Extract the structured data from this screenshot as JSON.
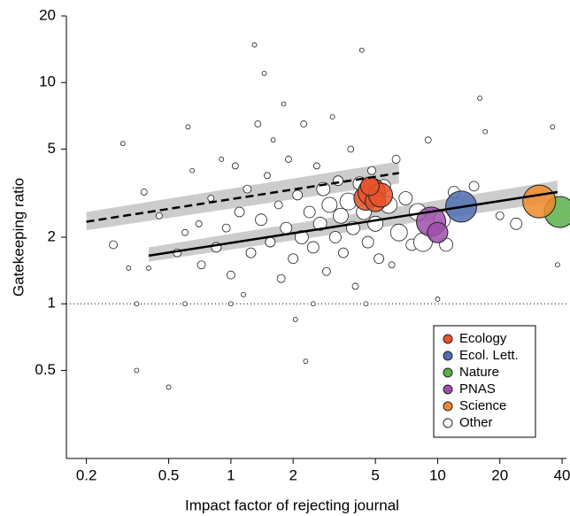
{
  "chart_data": {
    "type": "scatter",
    "x_label": "Impact factor of rejecting journal",
    "y_label": "Gatekeeping ratio",
    "log_x": true,
    "log_y": true,
    "xlim": [
      0.16,
      42
    ],
    "ylim": [
      0.2,
      20
    ],
    "xticks": [
      0.2,
      0.5,
      1,
      2,
      5,
      10,
      20,
      40
    ],
    "yticks": [
      0.5,
      1,
      2,
      5,
      10,
      20
    ],
    "legend_position": "lower right",
    "reference_y": 1,
    "fits": [
      {
        "style": "dashed",
        "x": [
          0.2,
          6.5
        ],
        "y": [
          2.35,
          3.9
        ],
        "band_low": [
          2.15,
          3.5
        ],
        "band_high": [
          2.6,
          4.4
        ]
      },
      {
        "style": "solid",
        "x": [
          0.4,
          38
        ],
        "y": [
          1.65,
          3.2
        ],
        "band_low": [
          1.55,
          2.9
        ],
        "band_high": [
          1.8,
          3.6
        ]
      }
    ],
    "series": [
      {
        "name": "Other",
        "color": "#ffffff",
        "x": [
          0.27,
          0.3,
          0.32,
          0.35,
          0.38,
          0.4,
          0.45,
          0.5,
          0.55,
          0.6,
          0.62,
          0.65,
          0.7,
          0.72,
          0.8,
          0.85,
          0.9,
          0.95,
          1.0,
          1.05,
          1.1,
          1.15,
          1.2,
          1.25,
          1.3,
          1.35,
          1.4,
          1.45,
          1.5,
          1.55,
          1.6,
          1.7,
          1.75,
          1.8,
          1.85,
          1.9,
          2.0,
          2.05,
          2.1,
          2.2,
          2.25,
          2.3,
          2.4,
          2.5,
          2.6,
          2.7,
          2.8,
          2.9,
          3.0,
          3.1,
          3.2,
          3.3,
          3.4,
          3.5,
          3.7,
          3.8,
          3.9,
          4.0,
          4.2,
          4.3,
          4.4,
          4.6,
          4.8,
          5.0,
          5.2,
          5.5,
          5.8,
          6.0,
          6.3,
          6.5,
          7.0,
          7.5,
          8.0,
          8.5,
          9.0,
          10.5,
          10.0,
          11,
          12,
          15,
          16,
          17,
          20,
          24,
          36,
          38,
          10,
          2.5,
          1.0,
          0.6,
          0.35,
          4.5
        ],
        "values": [
          1.85,
          5.3,
          1.45,
          0.5,
          3.2,
          1.45,
          2.5,
          0.42,
          1.7,
          2.1,
          6.3,
          4,
          2.3,
          1.5,
          3,
          1.8,
          4.5,
          2.2,
          1.35,
          4.2,
          2.6,
          1.1,
          3.3,
          1.7,
          14.8,
          6.5,
          2.4,
          11,
          3.8,
          1.9,
          5.5,
          2.8,
          1.3,
          8,
          2.2,
          4.5,
          1.6,
          0.85,
          3.1,
          2.0,
          6.5,
          0.55,
          2.6,
          1.8,
          4.2,
          2.3,
          3.3,
          1.4,
          2.8,
          7,
          2.0,
          3.6,
          2.5,
          1.7,
          2.9,
          5,
          2.2,
          1.2,
          3.5,
          14,
          2.6,
          1.9,
          4,
          2.3,
          1.6,
          3.4,
          2.8,
          1.5,
          4.5,
          2.1,
          3.0,
          1.85,
          2.6,
          1.9,
          5.5,
          2.4,
          1.05,
          1.85,
          3.2,
          3.4,
          8.5,
          6,
          2.5,
          2.3,
          6.3,
          1.5,
          0.3,
          1.0,
          1.0,
          1.0,
          1.0,
          1.0
        ],
        "sizes": [
          3,
          1,
          1,
          1,
          2,
          1,
          2,
          1,
          3,
          2,
          1,
          1,
          2,
          3,
          2,
          4,
          1,
          3,
          3,
          2,
          4,
          1,
          3,
          4,
          1,
          2,
          5,
          1,
          2,
          4,
          1,
          3,
          3,
          1,
          5,
          2,
          4,
          1,
          4,
          6,
          2,
          1,
          5,
          5,
          2,
          6,
          6,
          3,
          7,
          1,
          5,
          4,
          7,
          4,
          8,
          2,
          6,
          2,
          6,
          1,
          7,
          5,
          3,
          7,
          4,
          6,
          8,
          2,
          3,
          8,
          6,
          5,
          8,
          9,
          2,
          8,
          1,
          6,
          5,
          4,
          1,
          1,
          3,
          5,
          1,
          1,
          1,
          1,
          1,
          1,
          1,
          1
        ]
      },
      {
        "name": "Ecology",
        "color": "#e8542c",
        "x": [
          4.5,
          4.8,
          5.0,
          5.3,
          4.7
        ],
        "values": [
          3.0,
          3.2,
          2.9,
          3.1,
          3.4
        ],
        "sizes": [
          12,
          14,
          10,
          12,
          9
        ]
      },
      {
        "name": "Ecol. Lett.",
        "color": "#4f6fb0",
        "x": [
          13
        ],
        "values": [
          2.75
        ],
        "sizes": [
          16
        ]
      },
      {
        "name": "Nature",
        "color": "#5bb04a",
        "x": [
          39
        ],
        "values": [
          2.6
        ],
        "sizes": [
          16
        ]
      },
      {
        "name": "PNAS",
        "color": "#9c4faa",
        "x": [
          9.3,
          10
        ],
        "values": [
          2.35,
          2.1
        ],
        "sizes": [
          15,
          10
        ]
      },
      {
        "name": "Science",
        "color": "#ef8a2c",
        "x": [
          31
        ],
        "values": [
          2.9
        ],
        "sizes": [
          17
        ]
      }
    ],
    "legend_order": [
      1,
      2,
      3,
      4,
      5,
      0
    ]
  }
}
